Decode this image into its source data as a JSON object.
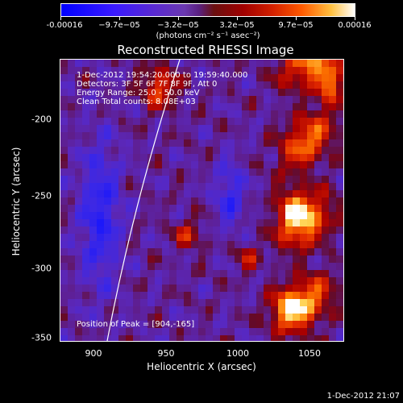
{
  "colorbar": {
    "tick_labels": [
      "-0.00016",
      "−9.7e−05",
      "−3.2e−05",
      "3.2e−05",
      "9.7e−05",
      "0.00016"
    ],
    "units": "(photons cm⁻² s⁻¹ asec⁻²)",
    "colors": [
      "#0000ff",
      "#5a2ad0",
      "#a00000",
      "#ff5a00",
      "#ffffff"
    ]
  },
  "plot": {
    "title": "Reconstructed RHESSI Image",
    "info_lines": [
      "1-Dec-2012 19:54:20.000 to 19:59:40.000",
      "Detectors: 3F 5F 6F 7F 8F 9F, Att 0",
      "Energy Range: 25.0 - 50.0 keV",
      "Clean     Total counts: 8.08E+03"
    ],
    "peak_text": "Position of Peak = [904,-165]",
    "xlabel": "Heliocentric X (arcsec)",
    "ylabel": "Heliocentric Y (arcsec)",
    "x_ticks": [
      "900",
      "950",
      "1000",
      "1050"
    ],
    "y_ticks": [
      "-200",
      "-250",
      "-300",
      "-350"
    ]
  },
  "chart_data": {
    "type": "heatmap",
    "title": "Reconstructed RHESSI Image",
    "xlabel": "Heliocentric X (arcsec)",
    "ylabel": "Heliocentric Y (arcsec)",
    "xlim": [
      879,
      1070
    ],
    "ylim": [
      -350,
      -155
    ],
    "colorbar_range": [
      -0.00016,
      0.00016
    ],
    "peak": [
      904,
      -165
    ]
  },
  "timestamp": "1-Dec-2012 21:07"
}
